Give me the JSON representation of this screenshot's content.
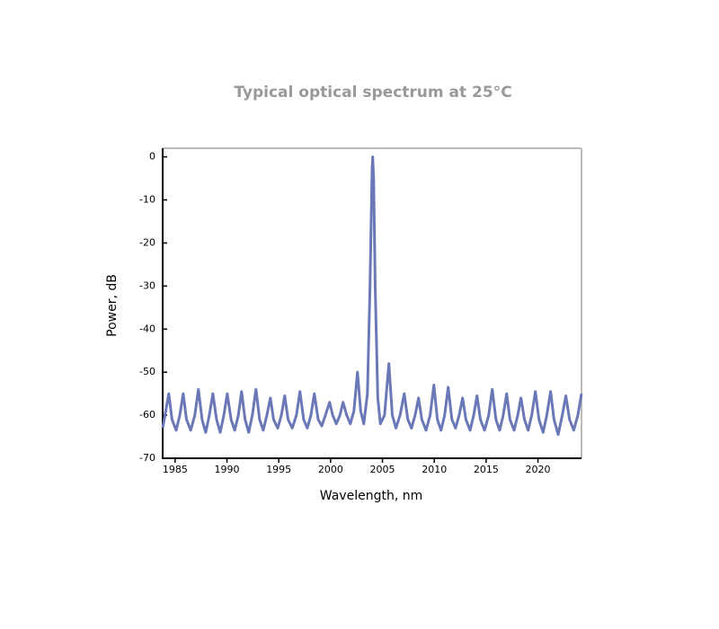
{
  "chart_data": {
    "type": "line",
    "title": "Typical optical spectrum at 25°C",
    "x_label": "Wavelength, nm",
    "y_label": "Power, dB",
    "xlim": [
      1983.8,
      2024.2
    ],
    "ylim": [
      -70,
      2
    ],
    "xticks": [
      1985,
      1990,
      1995,
      2000,
      2005,
      2010,
      2015,
      2020
    ],
    "yticks": [
      -70,
      -60,
      -50,
      -40,
      -30,
      -20,
      -10,
      0
    ],
    "series": [
      {
        "color": "#6b78b8",
        "x": [
          1983.8,
          1984.1,
          1984.39,
          1984.7,
          1985.1,
          1985.45,
          1985.78,
          1986.1,
          1986.5,
          1986.9,
          1987.25,
          1987.6,
          1987.95,
          1988.3,
          1988.64,
          1989.0,
          1989.35,
          1989.7,
          1990.03,
          1990.4,
          1990.75,
          1991.1,
          1991.41,
          1991.75,
          1992.1,
          1992.45,
          1992.8,
          1993.15,
          1993.5,
          1993.85,
          1994.19,
          1994.5,
          1994.9,
          1995.25,
          1995.57,
          1995.9,
          1996.3,
          1996.7,
          1997.04,
          1997.4,
          1997.75,
          1998.1,
          1998.43,
          1998.8,
          1999.15,
          1999.5,
          1999.9,
          2000.2,
          2000.55,
          2000.9,
          2001.2,
          2001.55,
          2001.9,
          2002.25,
          2002.59,
          2002.9,
          2003.2,
          2003.55,
          2003.8,
          2004.0,
          2004.06,
          2004.15,
          2004.3,
          2004.55,
          2004.8,
          2005.2,
          2005.62,
          2005.95,
          2006.3,
          2006.7,
          2007.1,
          2007.45,
          2007.8,
          2008.15,
          2008.48,
          2008.8,
          2009.2,
          2009.6,
          2009.96,
          2010.3,
          2010.65,
          2011.0,
          2011.34,
          2011.7,
          2012.05,
          2012.4,
          2012.73,
          2013.05,
          2013.45,
          2013.8,
          2014.12,
          2014.45,
          2014.85,
          2015.25,
          2015.59,
          2015.95,
          2016.3,
          2016.65,
          2016.98,
          2017.3,
          2017.7,
          2018.05,
          2018.36,
          2018.7,
          2019.05,
          2019.4,
          2019.75,
          2020.1,
          2020.5,
          2020.85,
          2021.22,
          2021.55,
          2021.95,
          2022.35,
          2022.69,
          2023.05,
          2023.45,
          2023.85,
          2024.2
        ],
        "values": [
          -63,
          -59,
          -55,
          -61,
          -63.5,
          -60,
          -55,
          -61,
          -63.5,
          -60,
          -54,
          -61,
          -64,
          -60,
          -55,
          -61,
          -64,
          -60,
          -55,
          -61,
          -63.5,
          -60,
          -54.5,
          -61,
          -64,
          -60,
          -54,
          -61,
          -63.5,
          -60,
          -56,
          -61,
          -63,
          -60,
          -55.5,
          -61,
          -63,
          -60,
          -54.5,
          -61,
          -63,
          -60,
          -55,
          -61,
          -62.5,
          -60,
          -57,
          -60,
          -62,
          -60,
          -57,
          -60,
          -62,
          -59,
          -50,
          -59,
          -62,
          -55,
          -30,
          -3,
          0,
          -5,
          -30,
          -56,
          -62,
          -60,
          -48,
          -60,
          -63,
          -60,
          -55,
          -61,
          -63,
          -60,
          -56,
          -61,
          -63.5,
          -60,
          -53,
          -61,
          -63.5,
          -60,
          -53.5,
          -61,
          -63,
          -60,
          -56,
          -61,
          -63.5,
          -60,
          -55.5,
          -61,
          -63.5,
          -60,
          -54,
          -61,
          -63.5,
          -60,
          -55,
          -61,
          -63.5,
          -60,
          -56,
          -61,
          -63.5,
          -60,
          -54.5,
          -61,
          -64,
          -60,
          -54.5,
          -61,
          -64.5,
          -60,
          -55.5,
          -61,
          -63.5,
          -60,
          -55
        ]
      }
    ]
  }
}
